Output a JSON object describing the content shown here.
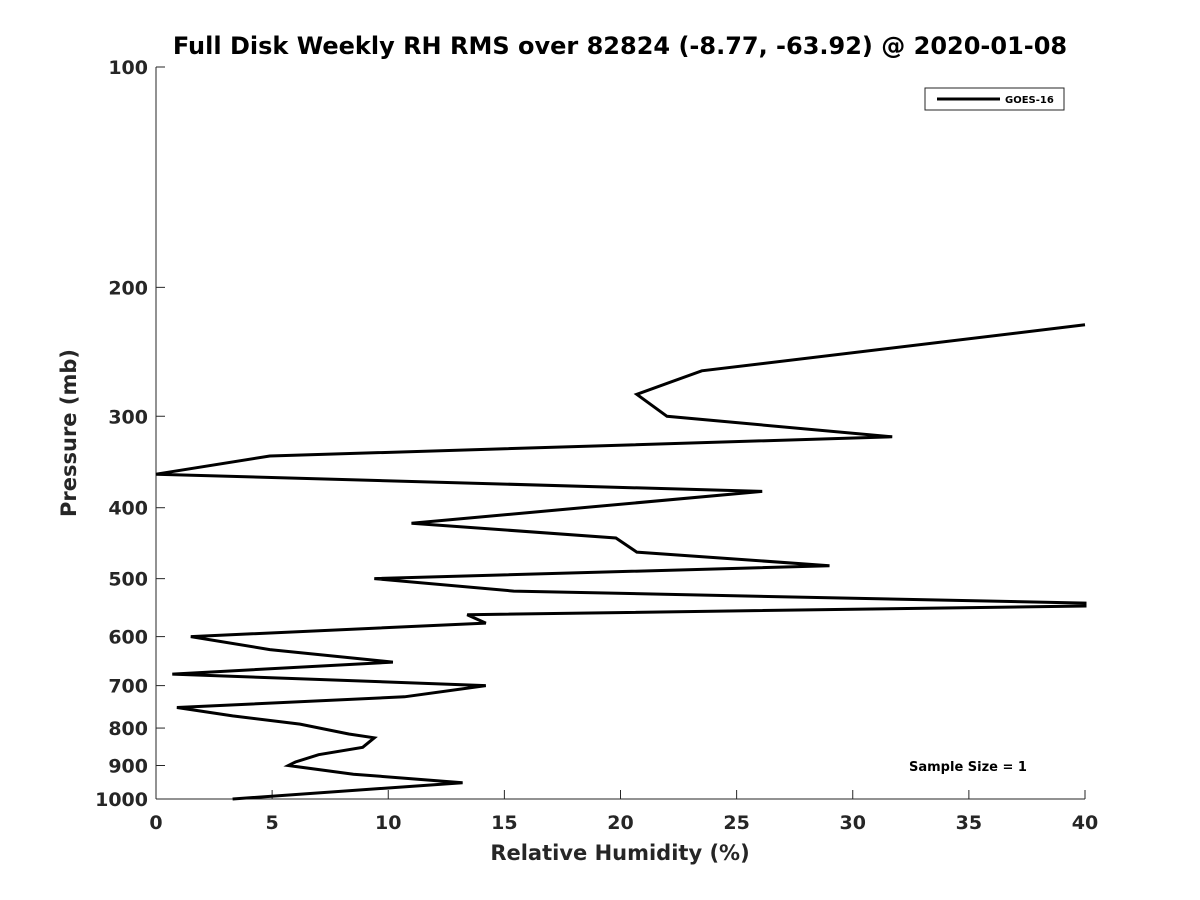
{
  "chart_data": {
    "type": "line",
    "title": "Full Disk Weekly RH RMS over 82824 (-8.77, -63.92) @ 2020-01-08",
    "xlabel": "Relative Humidity (%)",
    "ylabel": "Pressure (mb)",
    "xlim": [
      0,
      40
    ],
    "ylim": [
      100,
      1000
    ],
    "yscale": "log",
    "y_reversed": true,
    "grid": false,
    "legend_position": "top-right",
    "x_ticks": [
      0,
      5,
      10,
      15,
      20,
      25,
      30,
      35,
      40
    ],
    "y_ticks": [
      100,
      200,
      300,
      400,
      500,
      600,
      700,
      800,
      900,
      1000
    ],
    "annotation": "Sample Size = 1",
    "series": [
      {
        "name": "GOES-16",
        "color": "#000000",
        "points": [
          [
            3.3,
            1000
          ],
          [
            13.2,
            950
          ],
          [
            8.5,
            925
          ],
          [
            5.7,
            900
          ],
          [
            6.0,
            890
          ],
          [
            7.0,
            870
          ],
          [
            8.9,
            850
          ],
          [
            9.4,
            825
          ],
          [
            8.3,
            815
          ],
          [
            6.2,
            790
          ],
          [
            3.3,
            770
          ],
          [
            0.9,
            750
          ],
          [
            10.7,
            725
          ],
          [
            14.2,
            700
          ],
          [
            0.7,
            675
          ],
          [
            10.2,
            650
          ],
          [
            4.9,
            625
          ],
          [
            1.5,
            600
          ],
          [
            14.2,
            575
          ],
          [
            13.4,
            560
          ],
          [
            40.0,
            545
          ],
          [
            40.0,
            540
          ],
          [
            15.4,
            520
          ],
          [
            9.4,
            500
          ],
          [
            29.0,
            480
          ],
          [
            20.7,
            460
          ],
          [
            19.8,
            440
          ],
          [
            11.0,
            420
          ],
          [
            26.1,
            380
          ],
          [
            0.0,
            360
          ],
          [
            4.9,
            340
          ],
          [
            31.7,
            320
          ],
          [
            22.0,
            300
          ],
          [
            20.7,
            280
          ],
          [
            23.5,
            260
          ],
          [
            40.0,
            225
          ]
        ]
      }
    ]
  }
}
